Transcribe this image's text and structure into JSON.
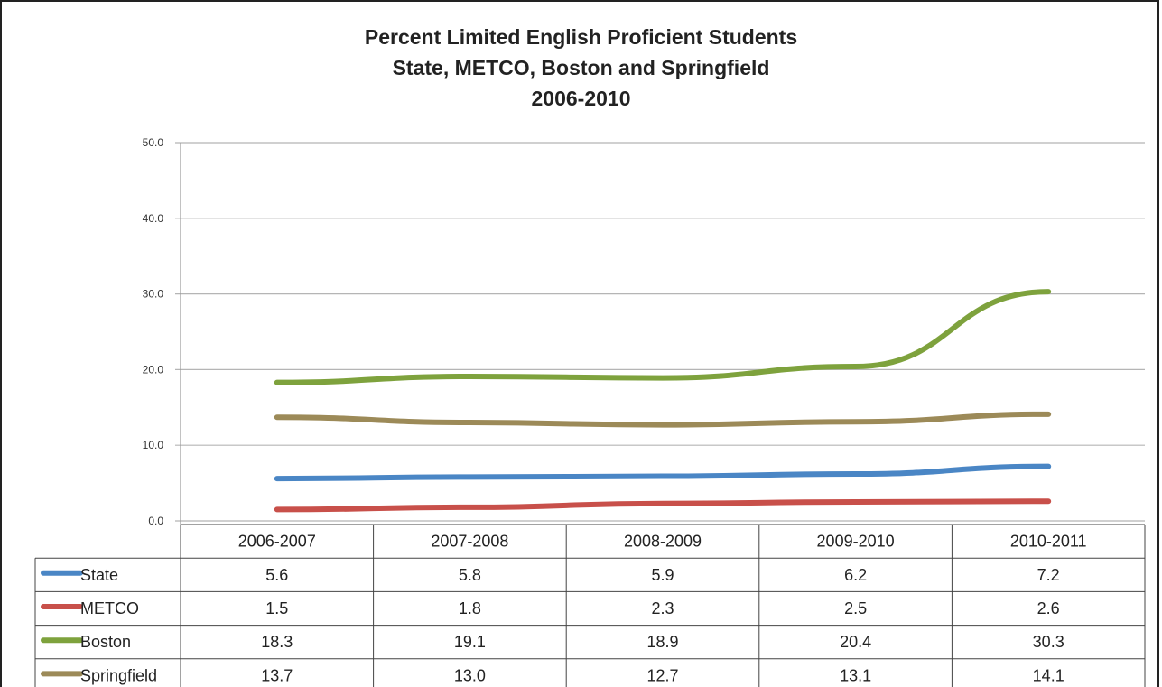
{
  "chart_data": {
    "type": "line",
    "title_lines": [
      "Percent Limited English Proficient Students",
      "State, METCO, Boston and Springfield",
      "2006-2010"
    ],
    "categories": [
      "2006-2007",
      "2007-2008",
      "2008-2009",
      "2009-2010",
      "2010-2011"
    ],
    "y_ticks": [
      "50.0",
      "40.0",
      "30.0",
      "20.0",
      "10.0",
      "0.0"
    ],
    "ylim": [
      0,
      50
    ],
    "grid": true,
    "legend": "data-table",
    "series": [
      {
        "name": "State",
        "color": "#4a86c5",
        "values": [
          5.6,
          5.8,
          5.9,
          6.2,
          7.2
        ],
        "labels": [
          "5.6",
          "5.8",
          "5.9",
          "6.2",
          "7.2"
        ]
      },
      {
        "name": "METCO",
        "color": "#c8504a",
        "values": [
          1.5,
          1.8,
          2.3,
          2.5,
          2.6
        ],
        "labels": [
          "1.5",
          "1.8",
          "2.3",
          "2.5",
          "2.6"
        ]
      },
      {
        "name": "Boston",
        "color": "#7ea23d",
        "values": [
          18.3,
          19.1,
          18.9,
          20.4,
          30.3
        ],
        "labels": [
          "18.3",
          "19.1",
          "18.9",
          "20.4",
          "30.3"
        ]
      },
      {
        "name": "Springfield",
        "color": "#9c8a58",
        "values": [
          13.7,
          13.0,
          12.7,
          13.1,
          14.1
        ],
        "labels": [
          "13.7",
          "13.0",
          "12.7",
          "13.1",
          "14.1"
        ]
      }
    ]
  }
}
